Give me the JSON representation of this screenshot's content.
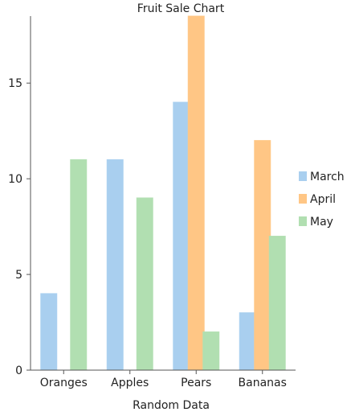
{
  "chart_data": {
    "type": "bar",
    "title": "Fruit Sale Chart",
    "xlabel": "Random Data",
    "ylabel": "",
    "categories": [
      "Oranges",
      "Apples",
      "Pears",
      "Bananas"
    ],
    "series": [
      {
        "name": "March",
        "values": [
          4,
          11,
          14,
          3
        ],
        "color": "#a9cfef"
      },
      {
        "name": "April",
        "values": [
          0,
          0,
          18.5,
          12
        ],
        "color": "#ffc685"
      },
      {
        "name": "May",
        "values": [
          11,
          9,
          2,
          7
        ],
        "color": "#b1dfb1"
      }
    ],
    "ylim": [
      0,
      18.5
    ],
    "yticks": [
      0,
      5,
      10,
      15
    ],
    "grid": false,
    "legend_position": "right"
  }
}
